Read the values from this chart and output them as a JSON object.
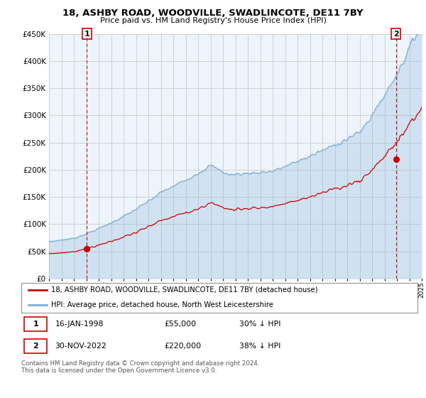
{
  "title": "18, ASHBY ROAD, WOODVILLE, SWADLINCOTE, DE11 7BY",
  "subtitle": "Price paid vs. HM Land Registry's House Price Index (HPI)",
  "x_start_year": 1995,
  "x_end_year": 2025,
  "y_min": 0,
  "y_max": 450000,
  "y_ticks": [
    0,
    50000,
    100000,
    150000,
    200000,
    250000,
    300000,
    350000,
    400000,
    450000
  ],
  "y_tick_labels": [
    "£0",
    "£50K",
    "£100K",
    "£150K",
    "£200K",
    "£250K",
    "£300K",
    "£350K",
    "£400K",
    "£450K"
  ],
  "sale1_year": 1998.04,
  "sale1_price": 55000,
  "sale2_year": 2022.92,
  "sale2_price": 220000,
  "hpi_color": "#7aaed6",
  "hpi_fill_color": "#ddeeff",
  "price_color": "#cc0000",
  "vline_color": "#cc0000",
  "grid_color": "#cccccc",
  "bg_color": "#eef4fb",
  "legend_line1": "18, ASHBY ROAD, WOODVILLE, SWADLINCOTE, DE11 7BY (detached house)",
  "legend_line2": "HPI: Average price, detached house, North West Leicestershire",
  "footer": "Contains HM Land Registry data © Crown copyright and database right 2024.\nThis data is licensed under the Open Government Licence v3.0."
}
